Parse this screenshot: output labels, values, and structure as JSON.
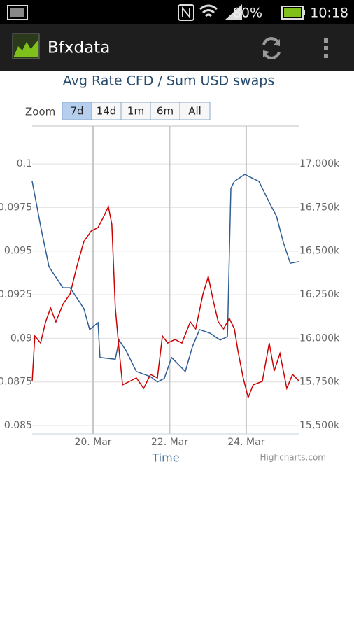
{
  "status_bar": {
    "battery": "80%",
    "time": "10:18"
  },
  "app_bar": {
    "title": "Bfxdata"
  },
  "zoom": {
    "label": "Zoom",
    "buttons": [
      "7d",
      "14d",
      "1m",
      "6m",
      "All"
    ]
  },
  "chart_data": {
    "type": "line",
    "title": "Avg Rate CFD / Sum USD swaps",
    "x_title": "Time",
    "credits": "Highcharts.com",
    "xlim": [
      18.41,
      25.39
    ],
    "xticks": [
      {
        "value": 20,
        "label": "20. Mar"
      },
      {
        "value": 22,
        "label": "22. Mar"
      },
      {
        "value": 24,
        "label": "24. Mar"
      }
    ],
    "ylim": [
      0.08452,
      0.10217
    ],
    "yticks": [
      0.085,
      0.0875,
      0.09,
      0.0925,
      0.095,
      0.0975,
      0.1
    ],
    "y2lim": [
      15452,
      17217
    ],
    "y2ticks": [
      {
        "value": 15500,
        "label": "15,500k"
      },
      {
        "value": 15750,
        "label": "15,750k"
      },
      {
        "value": 16000,
        "label": "16,000k"
      },
      {
        "value": 16250,
        "label": "16,250k"
      },
      {
        "value": 16500,
        "label": "16,500k"
      },
      {
        "value": 16750,
        "label": "16,750k"
      },
      {
        "value": 17000,
        "label": "17,000k"
      }
    ],
    "grid": true,
    "series": [
      {
        "color": "#2f5e94",
        "axis": "y",
        "x": [
          18.41,
          18.66,
          18.85,
          19.21,
          19.4,
          19.76,
          19.91,
          20.13,
          20.18,
          20.58,
          20.68,
          20.86,
          21.13,
          21.5,
          21.68,
          21.86,
          22.05,
          22.23,
          22.41,
          22.59,
          22.78,
          23.05,
          23.32,
          23.51,
          23.6,
          23.69,
          23.96,
          24.33,
          24.6,
          24.79,
          24.97,
          25.15,
          25.39
        ],
        "values": [
          0.099,
          0.0961,
          0.0941,
          0.0929,
          0.0929,
          0.0917,
          0.0905,
          0.0909,
          0.0889,
          0.0888,
          0.0899,
          0.0893,
          0.0881,
          0.0878,
          0.0875,
          0.0877,
          0.0889,
          0.0885,
          0.0881,
          0.0895,
          0.0905,
          0.0903,
          0.0899,
          0.0901,
          0.0986,
          0.099,
          0.0994,
          0.099,
          0.0978,
          0.097,
          0.0955,
          0.0943,
          0.0944
        ]
      },
      {
        "color": "#cc0000",
        "axis": "y2",
        "x": [
          18.41,
          18.48,
          18.63,
          18.76,
          18.89,
          19.03,
          19.21,
          19.4,
          19.58,
          19.76,
          19.95,
          20.13,
          20.27,
          20.4,
          20.49,
          20.58,
          20.68,
          20.77,
          20.95,
          21.13,
          21.32,
          21.5,
          21.68,
          21.81,
          21.95,
          22.14,
          22.32,
          22.54,
          22.68,
          22.87,
          23.01,
          23.14,
          23.27,
          23.41,
          23.56,
          23.69,
          23.78,
          23.92,
          24.05,
          24.18,
          24.42,
          24.6,
          24.73,
          24.88,
          25.06,
          25.21,
          25.39
        ],
        "values": [
          15753,
          16013,
          15973,
          16094,
          16174,
          16094,
          16194,
          16254,
          16414,
          16555,
          16615,
          16635,
          16695,
          16755,
          16655,
          16174,
          15933,
          15733,
          15753,
          15773,
          15713,
          15793,
          15773,
          16013,
          15973,
          15993,
          15973,
          16094,
          16054,
          16254,
          16354,
          16214,
          16094,
          16054,
          16114,
          16054,
          15933,
          15773,
          15660,
          15733,
          15753,
          15973,
          15813,
          15913,
          15713,
          15793,
          15753
        ]
      }
    ]
  }
}
